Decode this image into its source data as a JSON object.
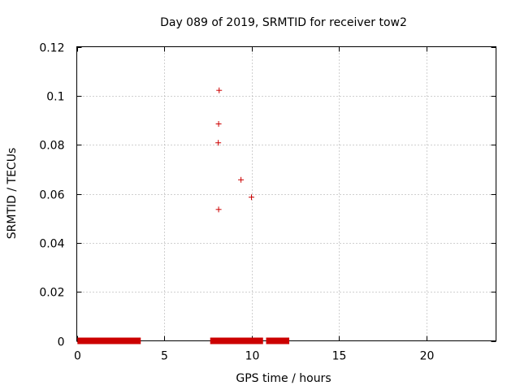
{
  "chart_data": {
    "type": "scatter",
    "title": "Day 089 of 2019, SRMTID for receiver tow2",
    "xlabel": "GPS time / hours",
    "ylabel": "SRMTID / TECUs",
    "xlim": [
      0,
      24
    ],
    "ylim": [
      0,
      0.12
    ],
    "xticks": [
      0,
      5,
      10,
      15,
      20
    ],
    "xtick_labels": [
      "0",
      "5",
      "10",
      "15",
      "20"
    ],
    "yticks": [
      0,
      0.02,
      0.04,
      0.06,
      0.08,
      0.1,
      0.12
    ],
    "ytick_labels": [
      "0",
      "0.02",
      "0.04",
      "0.06",
      "0.08",
      "0.1",
      "0.12"
    ],
    "grid": true,
    "marker": "+",
    "color": "#cc0000",
    "series": [
      {
        "name": "SRMTID",
        "points": [
          [
            8.15,
            0.1022
          ],
          [
            8.12,
            0.0885
          ],
          [
            8.1,
            0.0808
          ],
          [
            9.4,
            0.0657
          ],
          [
            10.0,
            0.0586
          ],
          [
            8.12,
            0.0536
          ]
        ],
        "zero_segments": [
          [
            0.2,
            3.5
          ],
          [
            7.8,
            10.5
          ],
          [
            11.0,
            12.0
          ]
        ]
      }
    ]
  }
}
